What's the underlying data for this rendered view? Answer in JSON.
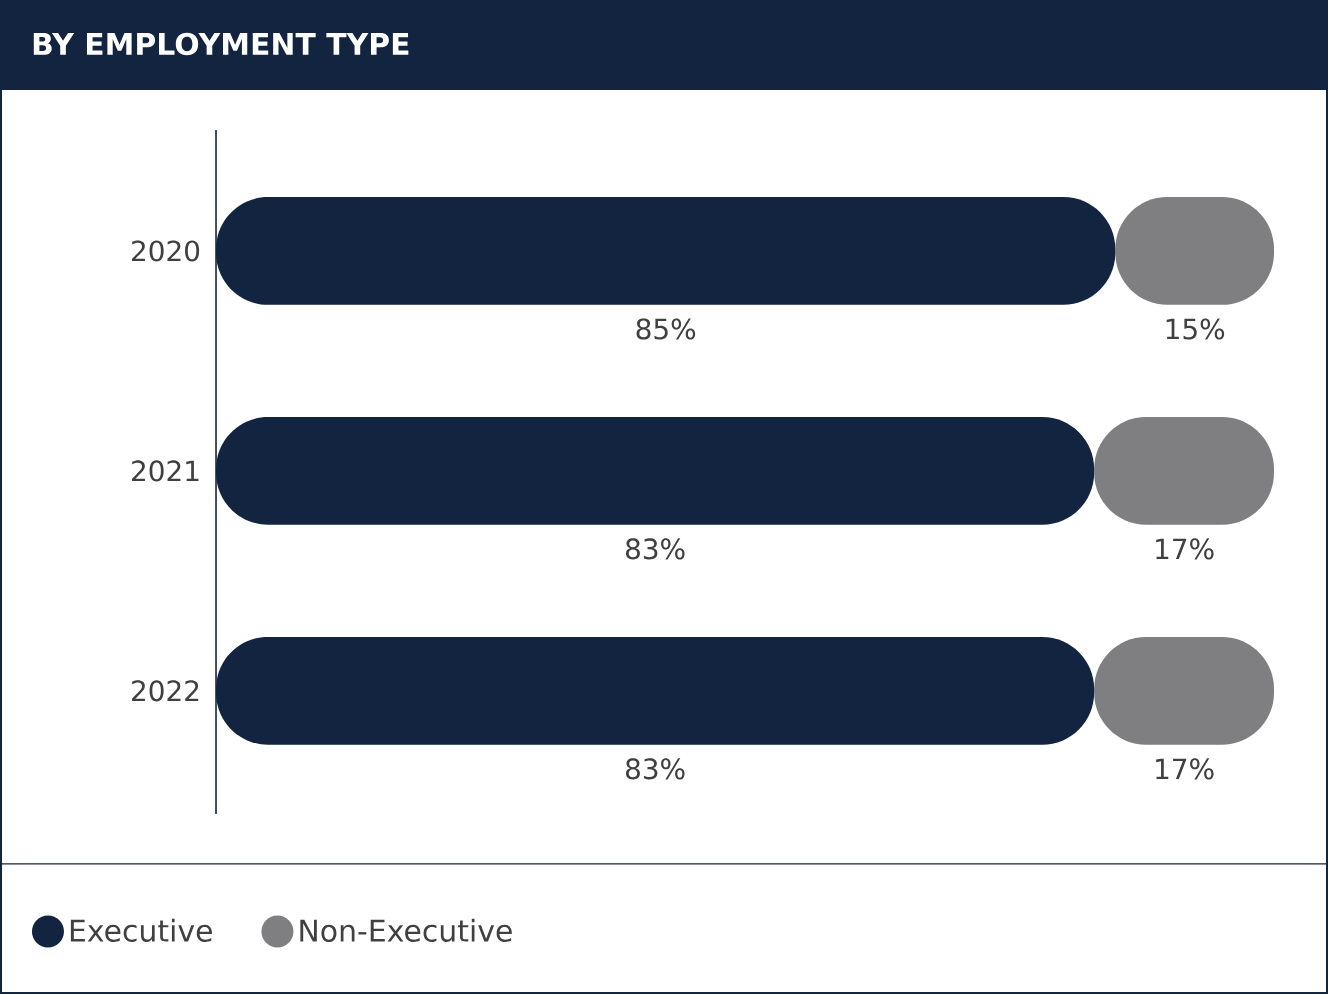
{
  "chart_data": {
    "type": "bar",
    "title": "BY EMPLOYMENT TYPE",
    "orientation": "horizontal",
    "stacked": true,
    "categories": [
      "2020",
      "2021",
      "2022"
    ],
    "series": [
      {
        "name": "Executive",
        "color": "#12243f",
        "values": [
          85,
          83,
          83
        ],
        "value_labels": [
          "85%",
          "83%",
          "83%"
        ]
      },
      {
        "name": "Non-Executive",
        "color": "#7f7f82",
        "values": [
          15,
          17,
          17
        ],
        "value_labels": [
          "15%",
          "17%",
          "17%"
        ]
      }
    ],
    "tick_labels": "y",
    "legend": "bottom"
  }
}
